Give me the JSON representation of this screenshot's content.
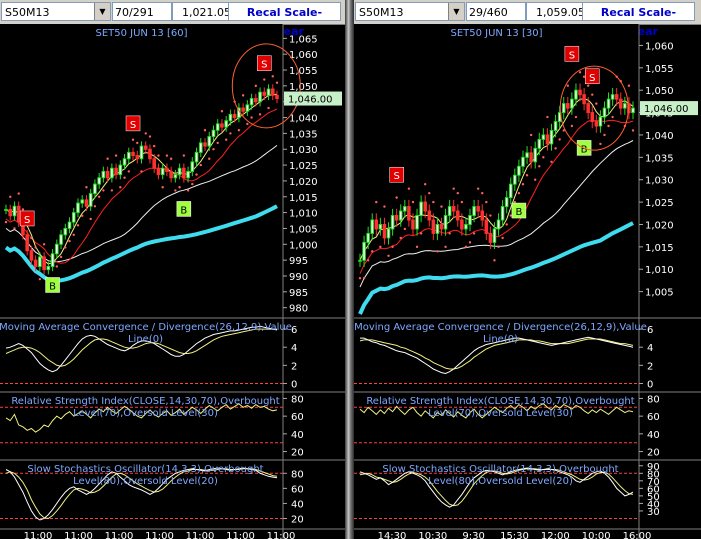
{
  "panes": [
    {
      "symbol": "S50M13",
      "bar_count": "70/291",
      "last_price": "1,021.05",
      "recal_label": "Recal Scale-Linear",
      "chart_title": "SET50 JUN 13   [60]",
      "price_tag": "1,046.00",
      "x_labels": [
        "11:00",
        "11:00",
        "11:00",
        "11:00",
        "11:00",
        "11:00",
        "11:00"
      ],
      "indicator_titles": {
        "macd": "Moving Average Convergence / Divergence(26,12,9),Value Line(0)",
        "rsi": "Relative Strength Index(CLOSE,14,30,70),Overbought Level(70),Oversold Level(30)",
        "stoch": "Slow Stochastics Oscillator(14,3,3),Overbought Level(80),Oversold Level(20)"
      }
    },
    {
      "symbol": "S50M13",
      "bar_count": "29/460",
      "last_price": "1,059.05",
      "recal_label": "Recal Scale-Linear",
      "chart_title": "SET50 JUN 13   [30]",
      "price_tag": "1,046.00",
      "x_labels": [
        "14:30",
        "10:30",
        "9:30",
        "15:30",
        "12:00",
        "10:00",
        "16:00"
      ],
      "indicator_titles": {
        "macd": "Moving Average Convergence / Divergence(26,12,9),Value Line(0)",
        "rsi": "Relative Strength Index(CLOSE,14,30,70),Overbought Level(70),Oversold Level(30)",
        "stoch": "Slow Stochastics Oscillator(14,3,3),Overbought Level(80),Oversold Level(20)"
      }
    }
  ],
  "chart_data": [
    {
      "type": "candlestick",
      "title": "SET50 JUN 13   [60]",
      "price_ylim": [
        978,
        1067
      ],
      "price_ticks": [
        980,
        985,
        990,
        995,
        1000,
        1005,
        1010,
        1015,
        1020,
        1025,
        1030,
        1035,
        1040,
        1045,
        1050,
        1055,
        1060,
        1065
      ],
      "last_price_marker": 1046,
      "closes": [
        1011,
        1009,
        1012,
        1007,
        1003,
        998,
        995,
        993,
        996,
        992,
        993,
        997,
        1000,
        1003,
        1005,
        1007,
        1010,
        1013,
        1014,
        1012,
        1016,
        1019,
        1021,
        1023,
        1021,
        1024,
        1022,
        1025,
        1027,
        1029,
        1028,
        1027,
        1031,
        1030,
        1027,
        1024,
        1022,
        1024,
        1023,
        1021,
        1022,
        1024,
        1021,
        1023,
        1026,
        1029,
        1032,
        1031,
        1034,
        1036,
        1038,
        1037,
        1039,
        1041,
        1040,
        1043,
        1042,
        1044,
        1046,
        1045,
        1048,
        1047,
        1049,
        1047,
        1046
      ],
      "signals": [
        {
          "label": "S",
          "index": 5,
          "type": "sell"
        },
        {
          "label": "B",
          "index": 11,
          "type": "buy"
        },
        {
          "label": "S",
          "index": 30,
          "type": "sell"
        },
        {
          "label": "B",
          "index": 42,
          "type": "buy"
        },
        {
          "label": "S",
          "index": 61,
          "type": "sell"
        }
      ],
      "macd": {
        "ylim": [
          -0.5,
          7
        ],
        "ticks": [
          0,
          2,
          4,
          6
        ],
        "macd": [
          3.9,
          4,
          4.2,
          4.4,
          4.2,
          3.8,
          3.4,
          2.8,
          2.2,
          1.8,
          1.5,
          1.3,
          1.5,
          2,
          2.6,
          3.2,
          3.8,
          4.4,
          4.9,
          5.2,
          5.3,
          5.2,
          4.9,
          4.6,
          4.3,
          4.1,
          3.9,
          3.7,
          3.6,
          3.8,
          4.2,
          4.5,
          4.7,
          4.7,
          4.6,
          4.4,
          4.1,
          3.8,
          3.5,
          3.2,
          3,
          3,
          3.2,
          3.6,
          4,
          4.4,
          4.7,
          5,
          5.2,
          5.4,
          5.5,
          5.6,
          5.7,
          5.8,
          5.8,
          5.9,
          6,
          6.1,
          6.2,
          6.2,
          6.3,
          6.2,
          6.1,
          6,
          5.9
        ],
        "signal": [
          3.3,
          3.5,
          3.7,
          3.9,
          4,
          4,
          3.9,
          3.7,
          3.4,
          3,
          2.6,
          2.3,
          2,
          1.9,
          2,
          2.3,
          2.7,
          3.2,
          3.7,
          4.1,
          4.5,
          4.8,
          4.9,
          4.9,
          4.8,
          4.6,
          4.4,
          4.2,
          4,
          3.9,
          3.9,
          4,
          4.2,
          4.4,
          4.5,
          4.5,
          4.4,
          4.2,
          4,
          3.8,
          3.6,
          3.4,
          3.3,
          3.3,
          3.4,
          3.6,
          3.9,
          4.2,
          4.5,
          4.8,
          5,
          5.2,
          5.3,
          5.4,
          5.5,
          5.6,
          5.7,
          5.8,
          5.9,
          6,
          6,
          6,
          6,
          6,
          6
        ]
      },
      "rsi": {
        "ylim": [
          15,
          85
        ],
        "ticks": [
          20,
          40,
          60,
          80
        ],
        "levels": [
          30,
          70
        ],
        "values": [
          58,
          55,
          62,
          50,
          48,
          44,
          46,
          42,
          45,
          50,
          48,
          55,
          60,
          57,
          62,
          65,
          60,
          63,
          66,
          62,
          58,
          64,
          68,
          65,
          70,
          66,
          63,
          67,
          71,
          68,
          64,
          60,
          58,
          63,
          67,
          62,
          59,
          63,
          66,
          61,
          64,
          68,
          62,
          66,
          70,
          67,
          63,
          68,
          72,
          69,
          66,
          70,
          73,
          68,
          71,
          74,
          70,
          72,
          69,
          73,
          70,
          71,
          68,
          66,
          67
        ]
      },
      "stoch": {
        "ylim": [
          10,
          95
        ],
        "ticks": [
          20,
          40,
          60,
          80
        ],
        "levels": [
          20,
          80
        ],
        "k": [
          85,
          82,
          75,
          65,
          55,
          42,
          30,
          22,
          18,
          20,
          25,
          32,
          40,
          48,
          55,
          60,
          62,
          58,
          55,
          52,
          55,
          60,
          66,
          72,
          78,
          82,
          80,
          75,
          70,
          65,
          62,
          60,
          58,
          55,
          52,
          55,
          60,
          66,
          72,
          76,
          80,
          82,
          84,
          85,
          86,
          85,
          84,
          83,
          85,
          86,
          87,
          86,
          85,
          84,
          85,
          86,
          87,
          86,
          85,
          84,
          80,
          78,
          76,
          75,
          74
        ],
        "d": [
          80,
          82,
          80,
          75,
          68,
          58,
          45,
          35,
          26,
          21,
          20,
          24,
          30,
          37,
          45,
          52,
          58,
          60,
          59,
          57,
          54,
          55,
          58,
          63,
          69,
          75,
          79,
          80,
          78,
          74,
          70,
          66,
          63,
          60,
          57,
          55,
          56,
          59,
          64,
          70,
          75,
          79,
          82,
          83,
          85,
          85,
          85,
          84,
          84,
          84,
          85,
          86,
          86,
          85,
          85,
          85,
          86,
          86,
          86,
          85,
          83,
          81,
          79,
          77,
          76
        ]
      }
    },
    {
      "type": "candlestick",
      "title": "SET50 JUN 13   [30]",
      "price_ylim": [
        1000,
        1063
      ],
      "price_ticks": [
        1005,
        1010,
        1015,
        1020,
        1025,
        1030,
        1035,
        1040,
        1045,
        1050,
        1055,
        1060
      ],
      "last_price_marker": 1046,
      "closes": [
        1012,
        1016,
        1018,
        1021,
        1019,
        1020,
        1017,
        1019,
        1022,
        1021,
        1023,
        1024,
        1021,
        1019,
        1022,
        1025,
        1023,
        1021,
        1018,
        1020,
        1019,
        1022,
        1024,
        1023,
        1021,
        1019,
        1020,
        1022,
        1024,
        1023,
        1021,
        1018,
        1016,
        1019,
        1021,
        1024,
        1026,
        1029,
        1031,
        1033,
        1035,
        1036,
        1034,
        1037,
        1039,
        1040,
        1038,
        1041,
        1043,
        1045,
        1047,
        1046,
        1048,
        1050,
        1049,
        1047,
        1045,
        1043,
        1042,
        1044,
        1046,
        1048,
        1049,
        1048,
        1046,
        1047,
        1045,
        1046
      ],
      "signals": [
        {
          "label": "S",
          "index": 9,
          "type": "sell"
        },
        {
          "label": "B",
          "index": 39,
          "type": "buy"
        },
        {
          "label": "S",
          "index": 52,
          "type": "sell"
        },
        {
          "label": "S",
          "index": 57,
          "type": "sell"
        },
        {
          "label": "B",
          "index": 55,
          "type": "buy"
        }
      ],
      "macd": {
        "ylim": [
          -0.5,
          7
        ],
        "ticks": [
          0,
          2,
          4,
          6
        ],
        "macd": [
          5,
          5,
          4.8,
          4.6,
          4.5,
          4.3,
          4.2,
          4,
          3.8,
          3.6,
          3.5,
          3.4,
          3.2,
          3,
          2.8,
          2.5,
          2.2,
          1.9,
          1.6,
          1.4,
          1.2,
          1.1,
          1.3,
          1.6,
          2,
          2.4,
          2.8,
          3.2,
          3.6,
          3.9,
          4.1,
          4.3,
          4.4,
          4.5,
          4.6,
          4.7,
          4.8,
          4.9,
          5,
          5,
          4.9,
          4.8,
          4.7,
          4.6,
          4.5,
          4.4,
          4.3,
          4.2,
          4.3,
          4.4,
          4.5,
          4.6,
          4.7,
          4.8,
          4.9,
          5,
          5.1,
          5,
          4.9,
          4.8,
          4.7,
          4.6,
          4.5,
          4.4,
          4.3,
          4.2,
          4.1,
          4
        ],
        "signal": [
          4.7,
          4.8,
          4.8,
          4.8,
          4.7,
          4.6,
          4.5,
          4.4,
          4.3,
          4.2,
          4,
          3.9,
          3.7,
          3.5,
          3.3,
          3.1,
          2.8,
          2.6,
          2.3,
          2.1,
          1.9,
          1.7,
          1.6,
          1.6,
          1.7,
          1.9,
          2.2,
          2.5,
          2.9,
          3.2,
          3.5,
          3.8,
          4,
          4.2,
          4.3,
          4.4,
          4.5,
          4.6,
          4.7,
          4.8,
          4.8,
          4.8,
          4.8,
          4.7,
          4.7,
          4.6,
          4.5,
          4.4,
          4.4,
          4.4,
          4.4,
          4.4,
          4.5,
          4.6,
          4.7,
          4.8,
          4.9,
          4.9,
          4.9,
          4.9,
          4.8,
          4.7,
          4.6,
          4.5,
          4.4,
          4.4,
          4.3,
          4.2
        ]
      },
      "rsi": {
        "ylim": [
          15,
          85
        ],
        "ticks": [
          20,
          40,
          60,
          80
        ],
        "levels": [
          30,
          70
        ],
        "values": [
          68,
          64,
          70,
          66,
          62,
          67,
          63,
          69,
          65,
          71,
          66,
          62,
          67,
          70,
          64,
          60,
          66,
          62,
          58,
          64,
          61,
          67,
          63,
          59,
          65,
          61,
          58,
          64,
          68,
          62,
          58,
          62,
          66,
          70,
          67,
          64,
          69,
          72,
          68,
          73,
          70,
          66,
          71,
          68,
          72,
          74,
          70,
          67,
          72,
          69,
          73,
          71,
          68,
          72,
          70,
          66,
          63,
          67,
          64,
          68,
          65,
          62,
          66,
          70,
          67,
          64,
          66,
          65
        ]
      },
      "stoch": {
        "ylim": [
          10,
          95
        ],
        "ticks": [
          30,
          40,
          50,
          60,
          70,
          80,
          90
        ],
        "levels": [
          20,
          80
        ],
        "k": [
          82,
          80,
          78,
          75,
          72,
          74,
          70,
          65,
          68,
          72,
          76,
          80,
          82,
          80,
          78,
          75,
          70,
          62,
          55,
          48,
          42,
          38,
          35,
          38,
          45,
          52,
          60,
          68,
          74,
          78,
          82,
          84,
          83,
          82,
          80,
          78,
          80,
          82,
          84,
          85,
          86,
          87,
          86,
          85,
          84,
          85,
          86,
          85,
          84,
          82,
          80,
          78,
          75,
          70,
          68,
          72,
          76,
          80,
          82,
          83,
          80,
          75,
          68,
          60,
          55,
          50,
          52,
          55
        ],
        "d": [
          78,
          79,
          80,
          78,
          75,
          74,
          72,
          70,
          68,
          69,
          72,
          76,
          79,
          81,
          80,
          78,
          75,
          70,
          63,
          56,
          50,
          44,
          39,
          37,
          38,
          43,
          50,
          58,
          66,
          72,
          77,
          81,
          83,
          83,
          82,
          80,
          79,
          80,
          82,
          84,
          85,
          86,
          86,
          86,
          85,
          85,
          85,
          85,
          85,
          84,
          82,
          80,
          78,
          75,
          72,
          71,
          72,
          75,
          79,
          81,
          81,
          79,
          74,
          68,
          62,
          57,
          53,
          52
        ]
      }
    }
  ]
}
